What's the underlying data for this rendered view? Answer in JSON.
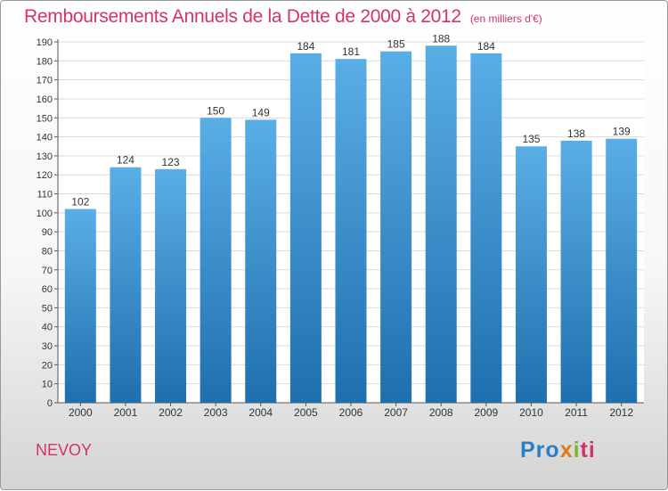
{
  "title": "Remboursements Annuels de la Dette de 2000 à 2012",
  "unit_note": "(en milliers d'€)",
  "commune": "NEVOY",
  "logo": {
    "p1": "Pro",
    "p2": "x",
    "p3": "i",
    "p4": "ti"
  },
  "colors": {
    "title": "#d2336b",
    "bar_top": "#5aaee6",
    "bar_bottom": "#1f6fae",
    "grid": "#d9d9d9"
  },
  "chart_data": {
    "type": "bar",
    "categories": [
      "2000",
      "2001",
      "2002",
      "2003",
      "2004",
      "2005",
      "2006",
      "2007",
      "2008",
      "2009",
      "2010",
      "2011",
      "2012"
    ],
    "values": [
      102,
      124,
      123,
      150,
      149,
      184,
      181,
      185,
      188,
      184,
      135,
      138,
      139
    ],
    "title": "Remboursements Annuels de la Dette de 2000 à 2012",
    "xlabel": "",
    "ylabel": "",
    "ylim": [
      0,
      190
    ],
    "yticks": [
      0,
      10,
      20,
      30,
      40,
      50,
      60,
      70,
      80,
      90,
      100,
      110,
      120,
      130,
      140,
      150,
      160,
      170,
      180,
      190
    ],
    "grid": true,
    "data_labels": true
  }
}
